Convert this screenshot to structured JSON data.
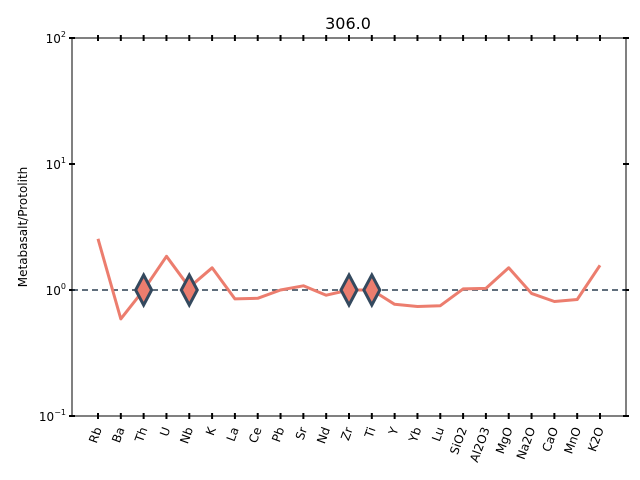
{
  "chart_data": {
    "type": "line",
    "title": "306.0",
    "xlabel": "",
    "ylabel": "Metabasalt/Protolith",
    "yscale": "log",
    "ylim": [
      0.1,
      100
    ],
    "ytick_labels": [
      {
        "base": "10",
        "exp": "−1",
        "value": 0.1
      },
      {
        "base": "10",
        "exp": "0",
        "value": 1
      },
      {
        "base": "10",
        "exp": "1",
        "value": 10
      },
      {
        "base": "10",
        "exp": "2",
        "value": 100
      }
    ],
    "categories": [
      "Rb",
      "Ba",
      "Th",
      "U",
      "Nb",
      "K",
      "La",
      "Ce",
      "Pb",
      "Sr",
      "Nd",
      "Zr",
      "Ti",
      "Y",
      "Yb",
      "Lu",
      "SiO2",
      "Al2O3",
      "MgO",
      "Na2O",
      "CaO",
      "MnO",
      "K2O"
    ],
    "series": [
      {
        "values": [
          2.55,
          0.59,
          1.0,
          1.85,
          1.05,
          1.5,
          0.85,
          0.86,
          1.0,
          1.08,
          0.91,
          1.0,
          1.0,
          0.77,
          0.74,
          0.75,
          1.02,
          1.03,
          1.5,
          0.94,
          0.81,
          0.84,
          1.57
        ],
        "color": "#ec7d6e"
      }
    ],
    "reference_line": {
      "y": 1.0,
      "style": "dashed",
      "color": "#2c3e50"
    },
    "markers": {
      "categories": [
        "Th",
        "Nb",
        "Zr",
        "Ti"
      ],
      "values": [
        1.0,
        1.0,
        1.0,
        1.0
      ],
      "shape": "diamond",
      "fill": "#ec7d6e",
      "edge": "#34495e"
    },
    "grid": false,
    "legend": "none"
  }
}
